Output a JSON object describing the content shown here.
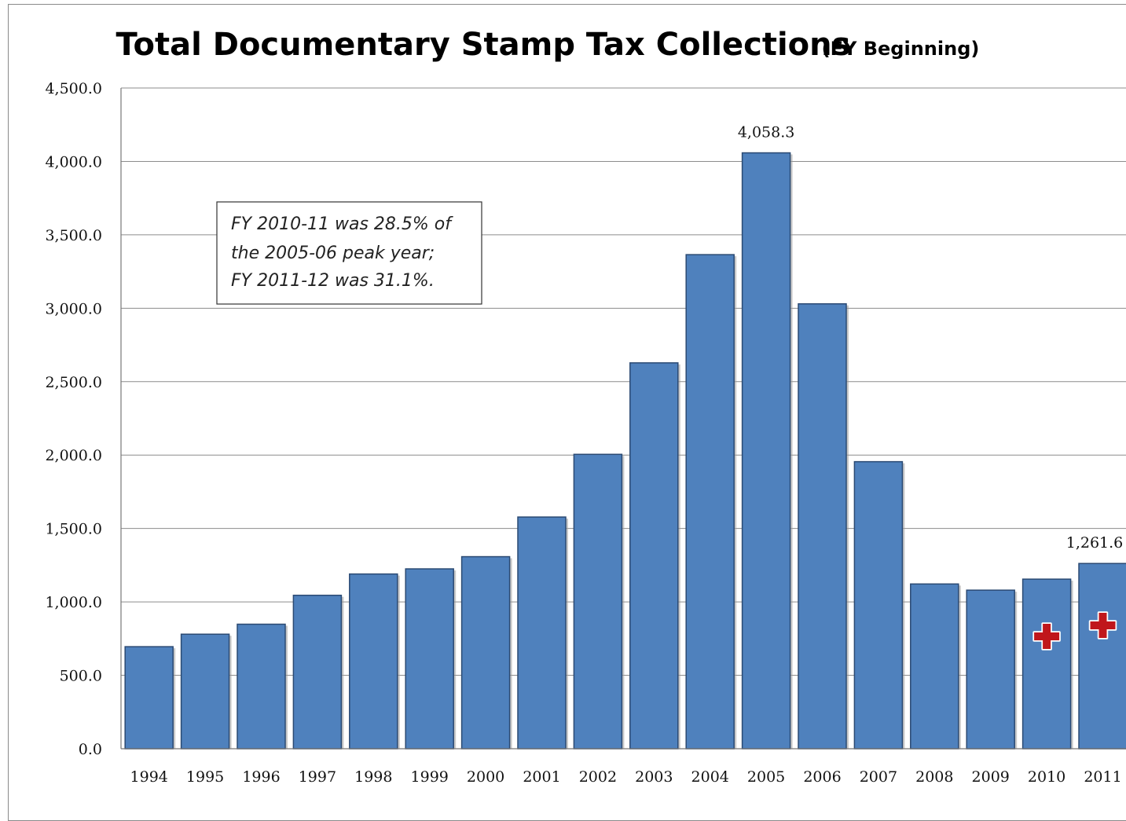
{
  "chart_data": {
    "type": "bar",
    "title": "Total Documentary Stamp Tax Collections",
    "subtitle": "(FY Beginning)",
    "categories": [
      "1994",
      "1995",
      "1996",
      "1997",
      "1998",
      "1999",
      "2000",
      "2001",
      "2002",
      "2003",
      "2004",
      "2005",
      "2006",
      "2007",
      "2008",
      "2009",
      "2010",
      "2011"
    ],
    "values": [
      695,
      780,
      848,
      1045,
      1190,
      1225,
      1308,
      1578,
      2005,
      2628,
      3365,
      4058.3,
      3030,
      1955,
      1122,
      1080,
      1155,
      1261.6
    ],
    "data_labels": [
      {
        "category": "2005",
        "text": "4,058.3"
      },
      {
        "category": "2011",
        "text": "1,261.6"
      }
    ],
    "ylim": [
      0,
      4500
    ],
    "yticks": [
      {
        "value": 0,
        "label": "0.0"
      },
      {
        "value": 500,
        "label": "500.0"
      },
      {
        "value": 1000,
        "label": "1,000.0"
      },
      {
        "value": 1500,
        "label": "1,500.0"
      },
      {
        "value": 2000,
        "label": "2,000.0"
      },
      {
        "value": 2500,
        "label": "2,500.0"
      },
      {
        "value": 3000,
        "label": "3,000.0"
      },
      {
        "value": 3500,
        "label": "3,500.0"
      },
      {
        "value": 4000,
        "label": "4,000.0"
      },
      {
        "value": 4500,
        "label": "4,500.0"
      }
    ],
    "xlabel": "",
    "ylabel": "",
    "grid": true,
    "bar_color": "#4f81bd",
    "marker_color": "#c0161b",
    "marked_categories": [
      "2010",
      "2011"
    ],
    "annotation": {
      "lines": [
        "FY 2010-11 was 28.5% of",
        "the  2005-06 peak year;",
        "FY 2011-12 was 31.1%."
      ]
    }
  }
}
